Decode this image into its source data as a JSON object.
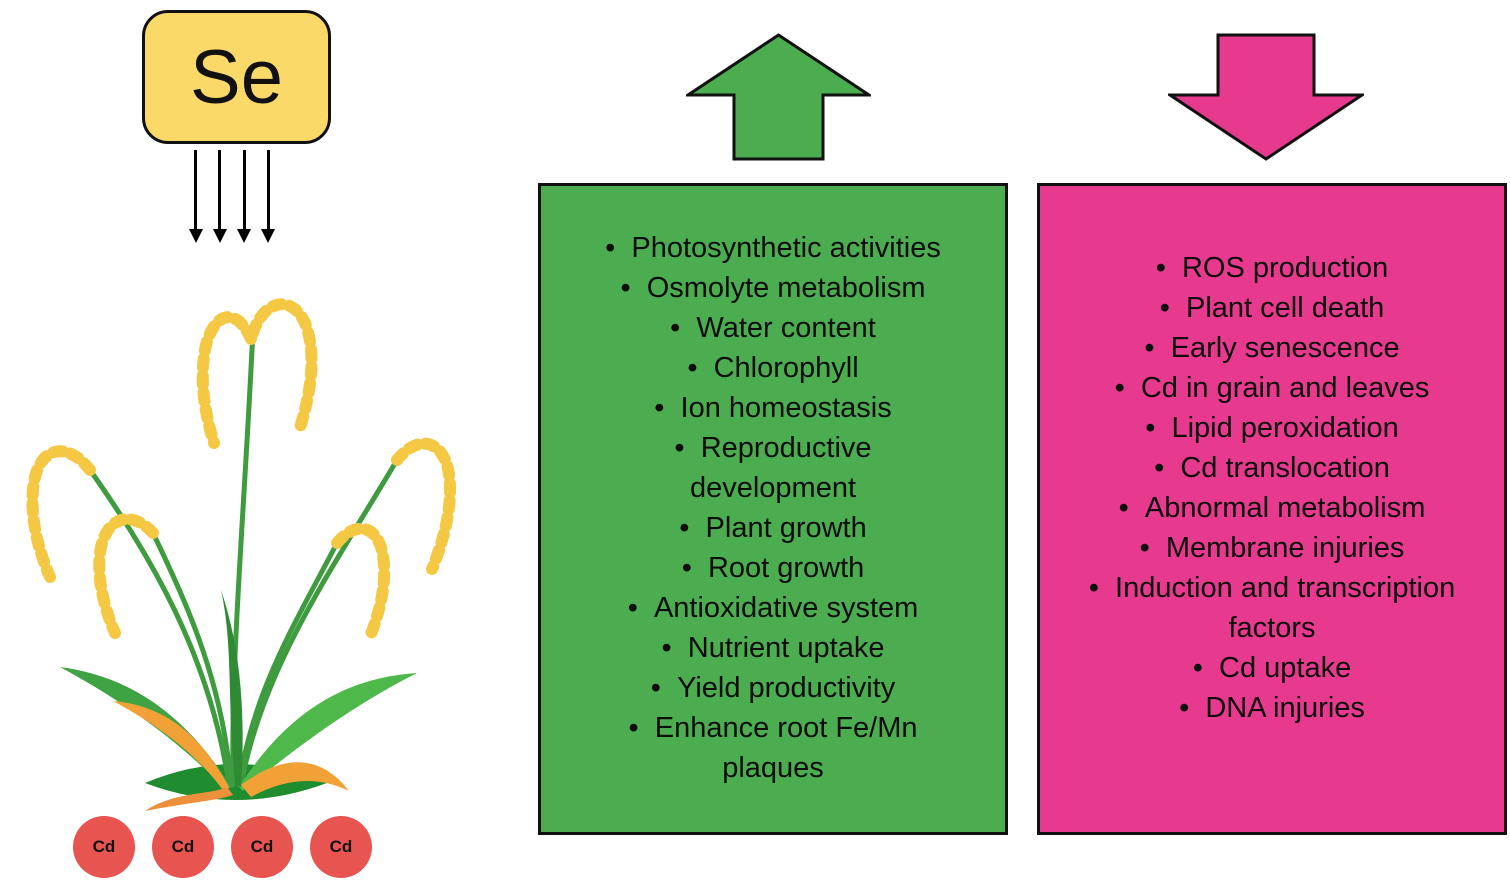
{
  "se_box": {
    "label": "Se"
  },
  "cd_circles": [
    "Cd",
    "Cd",
    "Cd",
    "Cd"
  ],
  "icons": {
    "se_to_plant_arrows": "four-thin-down-arrows",
    "positive_arrow": "block-up-arrow",
    "negative_arrow": "block-down-arrow",
    "plant": "rice-plant-with-grain-panicles"
  },
  "colors": {
    "se_box_fill": "#FBD968",
    "cd_circle_fill": "#E85450",
    "positive_green": "#4CAD50",
    "negative_pink": "#E7398D",
    "outline": "#111111"
  },
  "positive_effects": {
    "items": [
      "Photosynthetic activities",
      "Osmolyte metabolism",
      "Water content",
      "Chlorophyll",
      "Ion homeostasis",
      "Reproductive\ndevelopment",
      "Plant growth",
      "Root growth",
      "Antioxidative system",
      "Nutrient uptake",
      "Yield productivity",
      "Enhance root Fe/Mn\nplaques"
    ]
  },
  "negative_effects": {
    "items": [
      "ROS production",
      "Plant cell death",
      "Early senescence",
      "Cd in grain and leaves",
      "Lipid peroxidation",
      "Cd translocation",
      "Abnormal metabolism",
      "Membrane injuries",
      "Induction and transcription\nfactors",
      "Cd uptake",
      "DNA injuries"
    ]
  }
}
